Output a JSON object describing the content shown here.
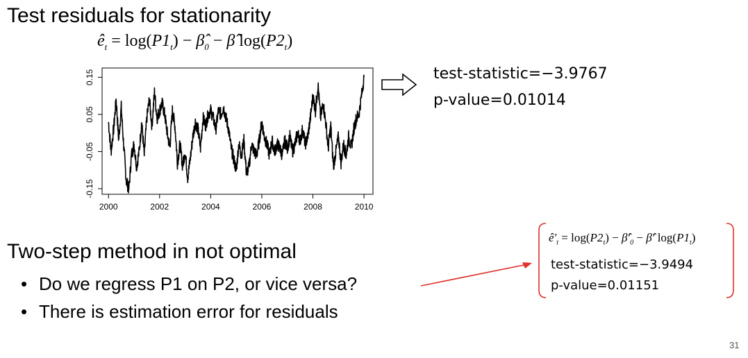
{
  "slide": {
    "title": "Test residuals for stationarity",
    "equation_main": {
      "lhs": "ê",
      "lhs_sub": "t",
      "rhs_1": " = ",
      "log": "log",
      "arg1": "P1",
      "arg1_sub": "t",
      "minus_beta0": "β̂",
      "beta0_sub": "0",
      "minus_beta": "β̂",
      "arg2": "P2",
      "arg2_sub": "t"
    },
    "result_1": {
      "statistic": "test-statistic=−3.9767",
      "pvalue": "p-value=0.01014"
    },
    "section2_title": "Two-step method in not optimal",
    "bullets": [
      "Do we regress P1 on P2, or vice versa?",
      "There is estimation error for residuals"
    ],
    "equation_alt": {
      "lhs": "ê′",
      "lhs_sub": "t",
      "eq": " = ",
      "log": "log",
      "arg1": "P2",
      "arg1_sub": "t",
      "beta0": "β̂′",
      "beta0_sub": "0",
      "beta": "β̂′",
      "arg2": "P1",
      "arg2_sub": "t"
    },
    "result_2": {
      "statistic": "test-statistic=−3.9494",
      "pvalue": "p-value=0.01151"
    },
    "page_number": "31",
    "colors": {
      "arrow_red": "#e0302a",
      "bracket_red": "#e0302a"
    }
  },
  "chart_data": {
    "type": "line",
    "x_tick_labels": [
      "2000",
      "2002",
      "2004",
      "2006",
      "2008",
      "2010"
    ],
    "y_tick_labels": [
      "-0.15",
      "-0.05",
      "0.05",
      "0.15"
    ],
    "y_ticks": [
      -0.15,
      -0.05,
      0.05,
      0.15
    ],
    "x_ticks": [
      2000,
      2002,
      2004,
      2006,
      2008,
      2010
    ],
    "xlim": [
      1999.75,
      2010.35
    ],
    "ylim": [
      -0.165,
      0.175
    ],
    "series": [
      {
        "x": [
          2000.0,
          2000.1,
          2000.2,
          2000.3,
          2000.4,
          2000.5,
          2000.6,
          2000.7,
          2000.8,
          2000.9,
          2001.0,
          2001.1,
          2001.2,
          2001.3,
          2001.4,
          2001.5,
          2001.6,
          2001.7,
          2001.8,
          2001.9,
          2002.0,
          2002.1,
          2002.2,
          2002.3,
          2002.4,
          2002.5,
          2002.6,
          2002.7,
          2002.8,
          2002.9,
          2003.0,
          2003.1,
          2003.2,
          2003.3,
          2003.4,
          2003.5,
          2003.6,
          2003.7,
          2003.8,
          2003.9,
          2004.0,
          2004.1,
          2004.2,
          2004.3,
          2004.4,
          2004.5,
          2004.6,
          2004.7,
          2004.8,
          2004.9,
          2005.0,
          2005.1,
          2005.2,
          2005.3,
          2005.4,
          2005.5,
          2005.6,
          2005.7,
          2005.8,
          2005.9,
          2006.0,
          2006.1,
          2006.2,
          2006.3,
          2006.4,
          2006.5,
          2006.6,
          2006.7,
          2006.8,
          2006.9,
          2007.0,
          2007.1,
          2007.2,
          2007.3,
          2007.4,
          2007.5,
          2007.6,
          2007.7,
          2007.8,
          2007.9,
          2008.0,
          2008.1,
          2008.2,
          2008.3,
          2008.4,
          2008.5,
          2008.6,
          2008.7,
          2008.8,
          2008.9,
          2009.0,
          2009.1,
          2009.2,
          2009.3,
          2009.4,
          2009.5,
          2009.6,
          2009.7,
          2009.8,
          2009.9,
          2010.0
        ],
        "y": [
          0.03,
          -0.05,
          0.01,
          0.09,
          -0.02,
          0.07,
          -0.04,
          -0.13,
          -0.15,
          -0.06,
          -0.03,
          -0.09,
          -0.05,
          0.03,
          -0.06,
          0.04,
          0.09,
          0.02,
          0.11,
          0.04,
          0.06,
          0.08,
          0.05,
          0.0,
          -0.04,
          0.06,
          0.02,
          -0.08,
          -0.03,
          -0.09,
          -0.05,
          -0.12,
          -0.07,
          -0.01,
          0.03,
          0.01,
          -0.04,
          0.04,
          0.02,
          0.05,
          0.06,
          0.04,
          0.01,
          0.06,
          0.05,
          0.07,
          0.04,
          0.01,
          -0.04,
          -0.07,
          -0.1,
          -0.03,
          -0.06,
          -0.02,
          -0.11,
          -0.09,
          -0.03,
          -0.05,
          -0.06,
          -0.02,
          0.03,
          -0.01,
          -0.03,
          -0.06,
          -0.02,
          -0.05,
          -0.03,
          -0.04,
          -0.06,
          -0.02,
          -0.04,
          -0.01,
          -0.05,
          -0.03,
          0.0,
          -0.02,
          0.01,
          -0.03,
          -0.01,
          0.04,
          0.1,
          0.06,
          0.13,
          0.04,
          0.08,
          0.03,
          -0.04,
          0.02,
          -0.09,
          -0.05,
          -0.01,
          -0.08,
          -0.03,
          -0.06,
          -0.01,
          -0.04,
          0.01,
          0.04,
          0.05,
          0.1,
          0.15
        ]
      }
    ]
  }
}
